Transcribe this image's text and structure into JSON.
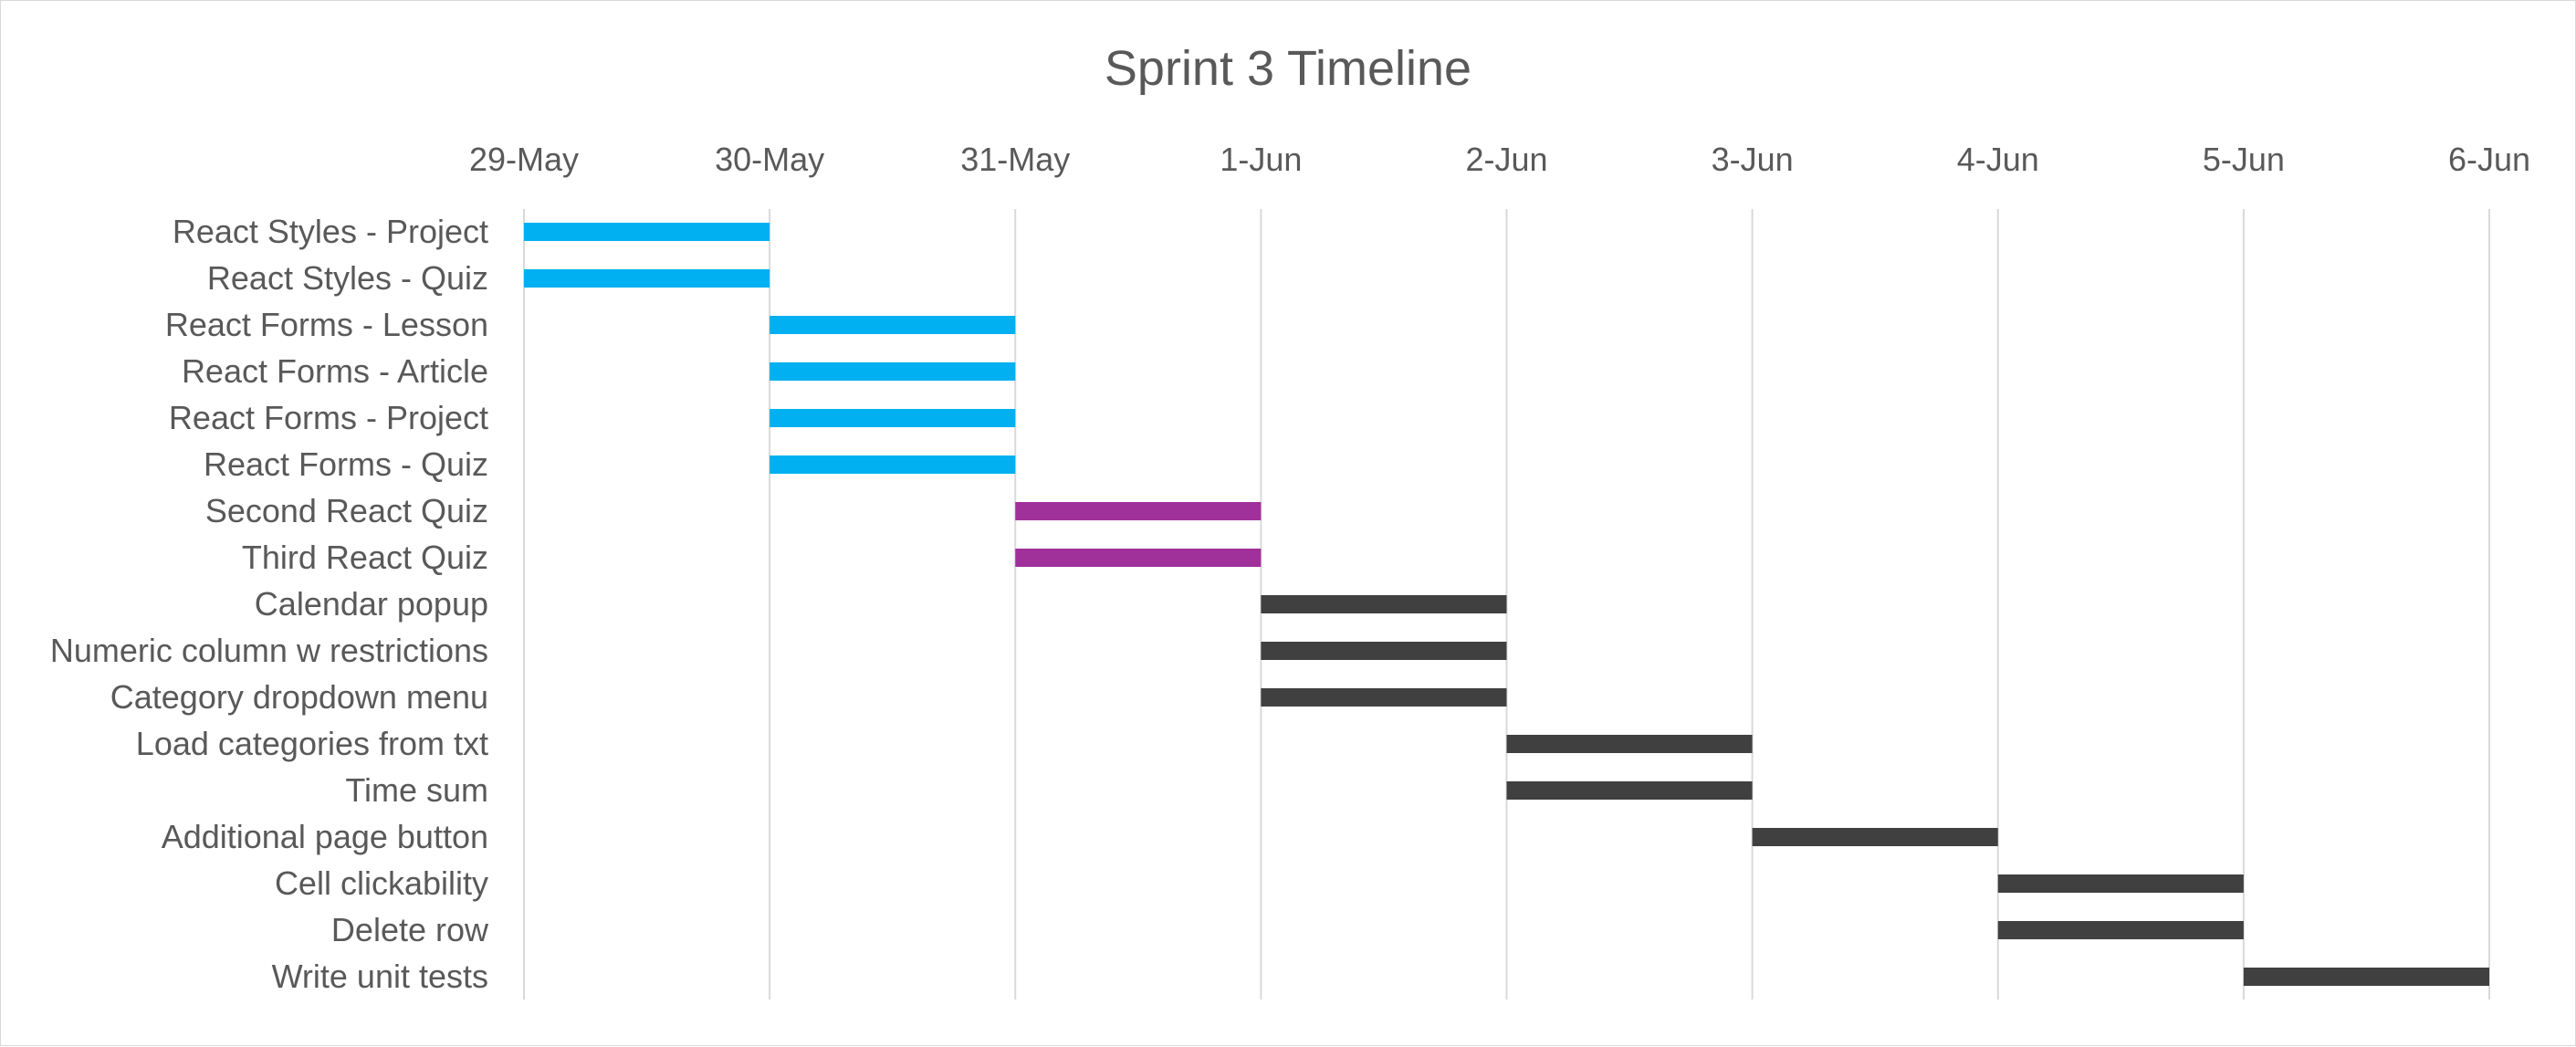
{
  "chart_data": {
    "type": "bar",
    "orientation": "horizontal-gantt",
    "title": "Sprint 3 Timeline",
    "xlabel": "",
    "ylabel": "",
    "x_axis_position": "top",
    "x_ticks": [
      "29-May",
      "30-May",
      "31-May",
      "1-Jun",
      "2-Jun",
      "3-Jun",
      "4-Jun",
      "5-Jun",
      "6-Jun"
    ],
    "xlim": [
      "29-May",
      "6-Jun"
    ],
    "grid": "vertical",
    "legend": "none",
    "colors": {
      "cyan": "#00b0f0",
      "purple": "#a0309a",
      "dark": "#404040",
      "grid": "#d9d9d9",
      "text": "#595959"
    },
    "tasks": [
      {
        "label": "React Styles - Project",
        "start": "29-May",
        "end": "30-May",
        "color": "cyan"
      },
      {
        "label": "React Styles - Quiz",
        "start": "29-May",
        "end": "30-May",
        "color": "cyan"
      },
      {
        "label": "React Forms - Lesson",
        "start": "30-May",
        "end": "31-May",
        "color": "cyan"
      },
      {
        "label": "React Forms - Article",
        "start": "30-May",
        "end": "31-May",
        "color": "cyan"
      },
      {
        "label": "React Forms - Project",
        "start": "30-May",
        "end": "31-May",
        "color": "cyan"
      },
      {
        "label": "React Forms - Quiz",
        "start": "30-May",
        "end": "31-May",
        "color": "cyan"
      },
      {
        "label": "Second React Quiz",
        "start": "31-May",
        "end": "1-Jun",
        "color": "purple"
      },
      {
        "label": "Third React Quiz",
        "start": "31-May",
        "end": "1-Jun",
        "color": "purple"
      },
      {
        "label": "Calendar popup",
        "start": "1-Jun",
        "end": "2-Jun",
        "color": "dark"
      },
      {
        "label": "Numeric column w restrictions",
        "start": "1-Jun",
        "end": "2-Jun",
        "color": "dark"
      },
      {
        "label": "Category dropdown menu",
        "start": "1-Jun",
        "end": "2-Jun",
        "color": "dark"
      },
      {
        "label": "Load categories from txt",
        "start": "2-Jun",
        "end": "3-Jun",
        "color": "dark"
      },
      {
        "label": "Time sum",
        "start": "2-Jun",
        "end": "3-Jun",
        "color": "dark"
      },
      {
        "label": "Additional page button",
        "start": "3-Jun",
        "end": "4-Jun",
        "color": "dark"
      },
      {
        "label": "Cell clickability",
        "start": "4-Jun",
        "end": "5-Jun",
        "color": "dark"
      },
      {
        "label": "Delete row",
        "start": "4-Jun",
        "end": "5-Jun",
        "color": "dark"
      },
      {
        "label": "Write unit tests",
        "start": "5-Jun",
        "end": "6-Jun",
        "color": "dark"
      }
    ]
  }
}
